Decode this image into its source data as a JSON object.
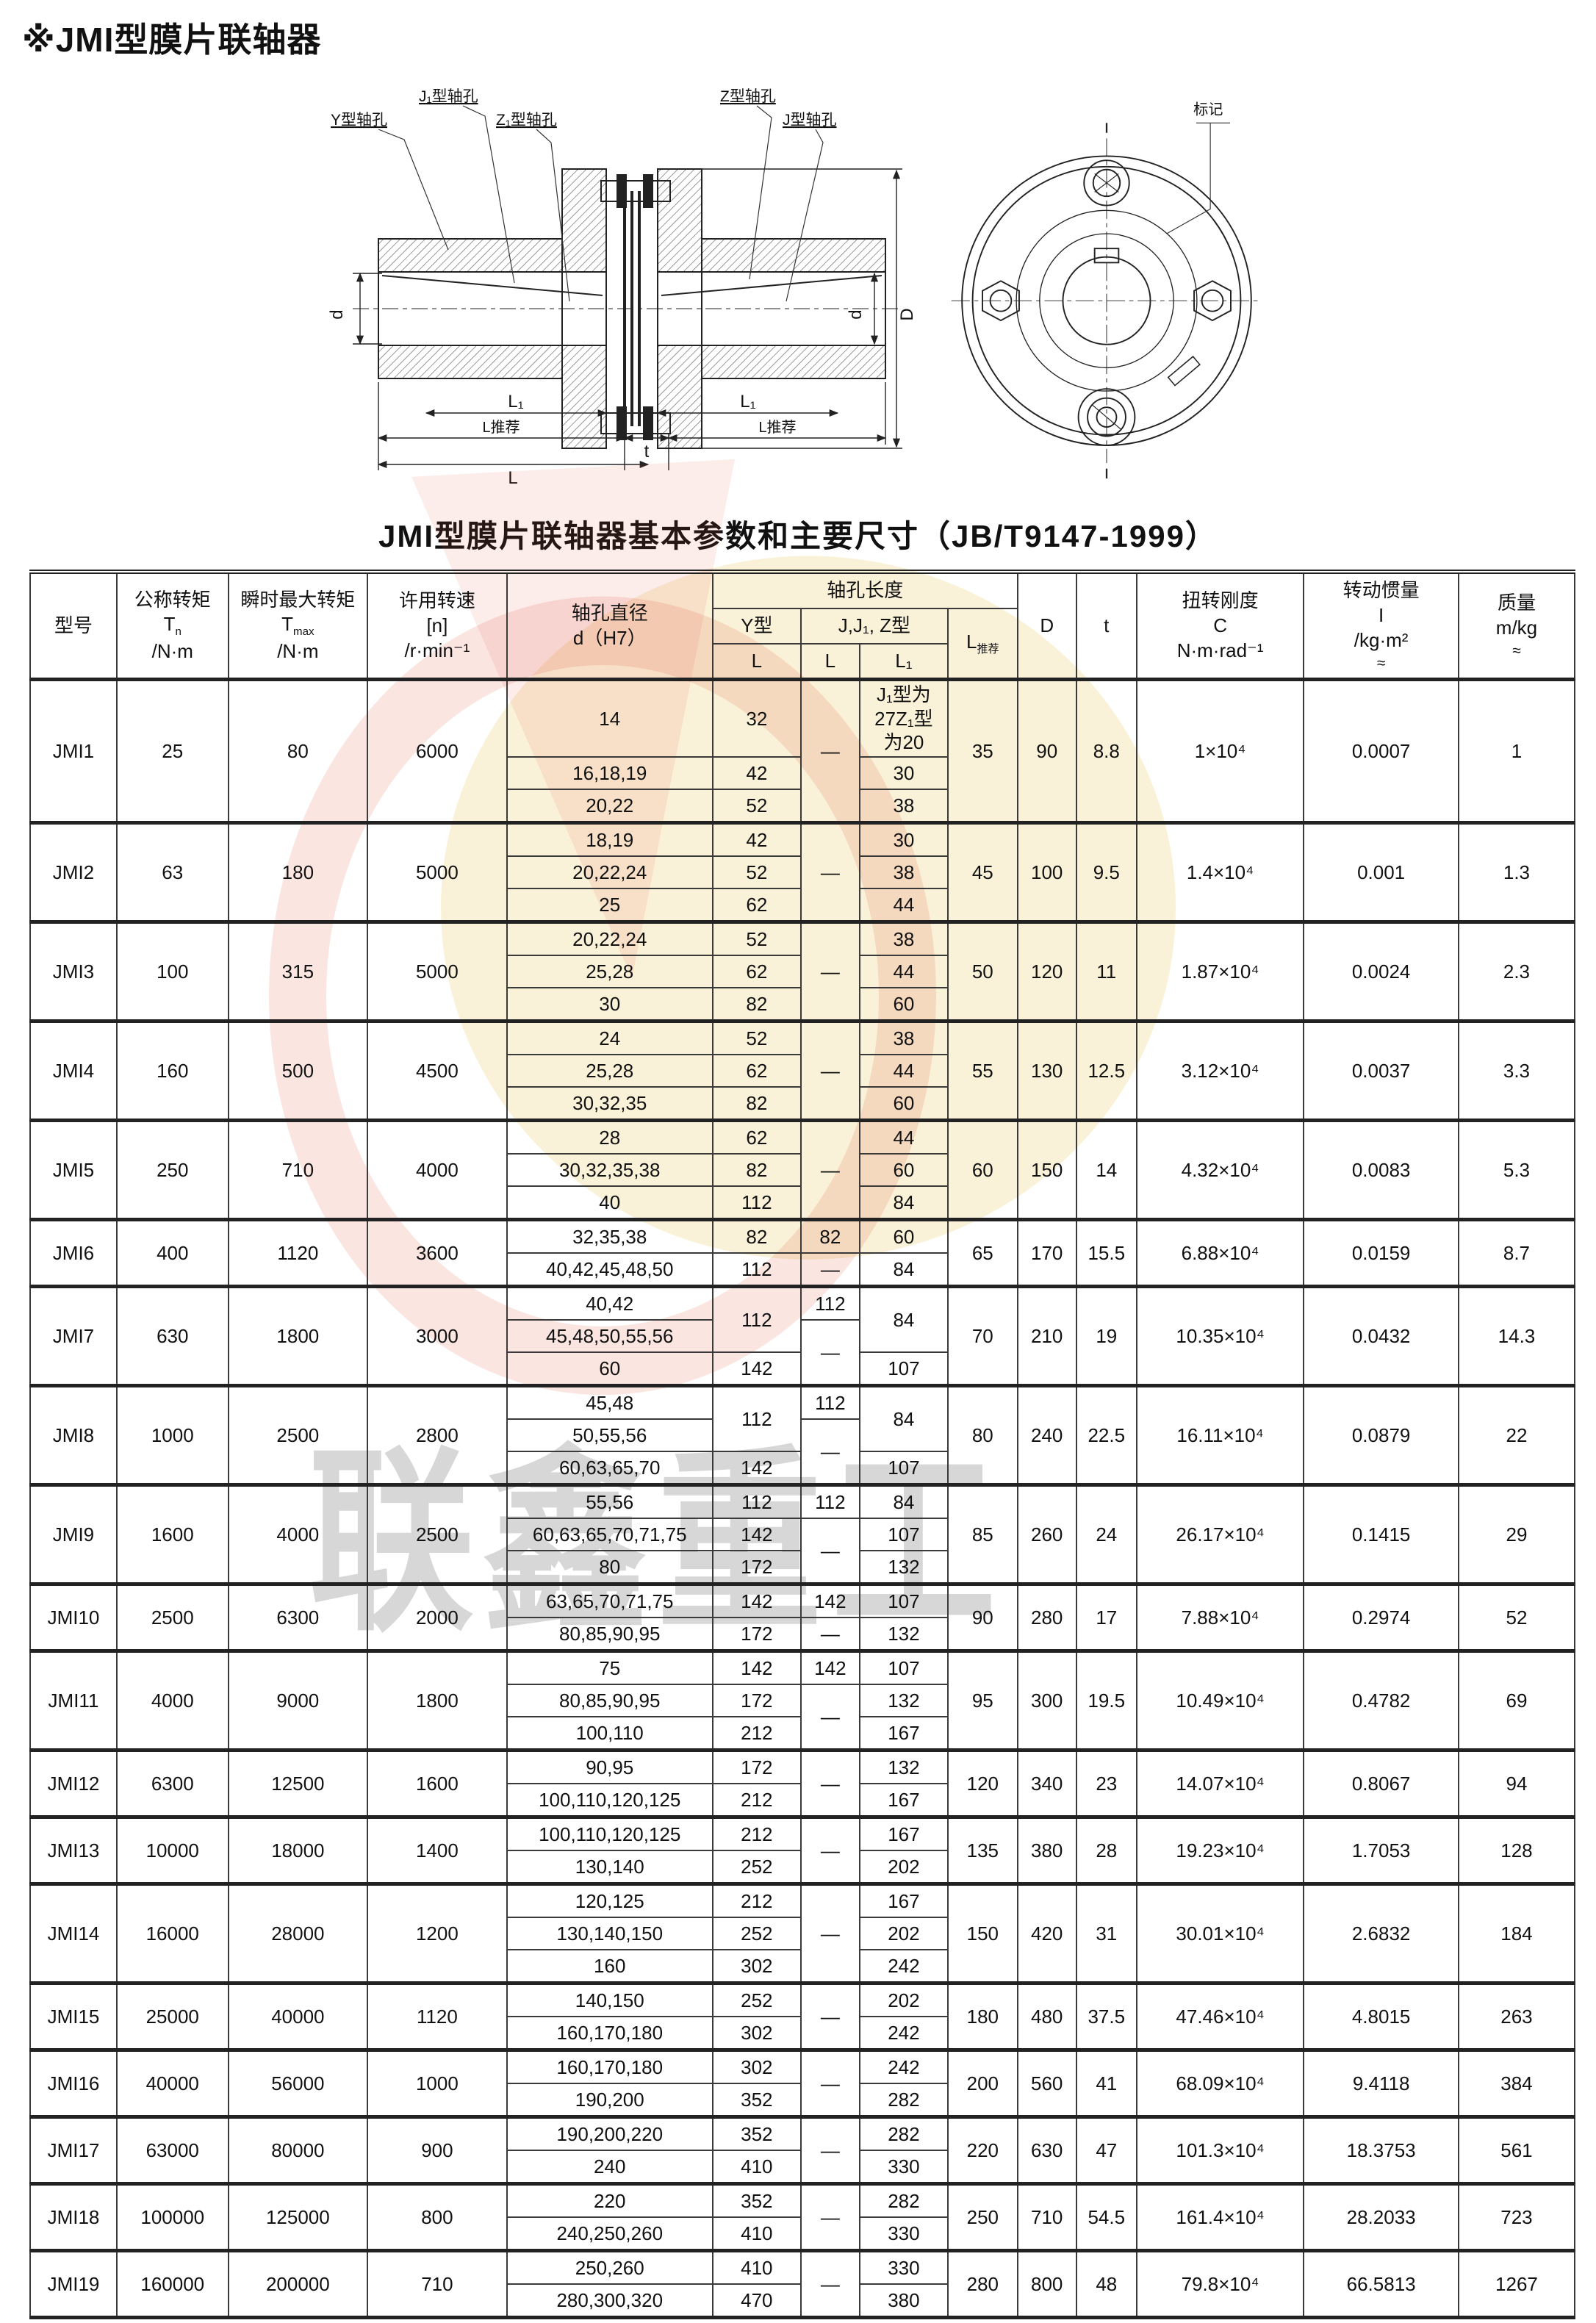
{
  "page": {
    "title": "※JMI型膜片联轴器",
    "table_title": "JMI型膜片联轴器基本参数和主要尺寸（JB/T9147-1999）",
    "watermark_text": "联鑫重工",
    "watermark_colors": {
      "cream": "#f8eecb",
      "red": "#df462d",
      "gray": "#b0b0b0"
    }
  },
  "diagram": {
    "section_labels": {
      "y": "Y型轴孔",
      "j1": "J₁型轴孔",
      "z1": "Z₁型轴孔",
      "z": "Z型轴孔",
      "j": "J型轴孔"
    },
    "front_label": "标记",
    "dims": {
      "d": "d",
      "D": "D",
      "L1": "L₁",
      "Lrec": "L推荐",
      "t": "t",
      "L": "L"
    }
  },
  "table": {
    "header": {
      "model": "型号",
      "hole_length": "轴孔长度",
      "tn": {
        "line1": "公称转矩",
        "base": "T",
        "sub": "n",
        "unit": "/N·m"
      },
      "tmax": {
        "line1": "瞬时最大转矩",
        "base": "T",
        "sub": "max",
        "unit": "/N·m"
      },
      "speed": {
        "line1": "许用转速",
        "line2": "[n]",
        "unit": "/r·min⁻¹"
      },
      "bore": {
        "line1": "轴孔直径",
        "line2": "d（H7）"
      },
      "y_type": "Y型",
      "jjz_type": "J,J₁, Z型",
      "col_L": "L",
      "col_L1": "L₁",
      "l_rec": {
        "base": "L",
        "sub": "推荐"
      },
      "col_D": "D",
      "col_t": "t",
      "stiffness": {
        "line1": "扭转刚度",
        "line2": "C",
        "line3": "N·m·rad⁻¹"
      },
      "inertia": {
        "line1": "转动惯量",
        "line2": "I",
        "line3": "/kg·m²",
        "line4": "≈"
      },
      "mass": {
        "line1": "质量",
        "line2": "m/kg",
        "line3": "≈"
      }
    },
    "groups": [
      {
        "model": "JMI1",
        "tn": "25",
        "tmax": "80",
        "n": "6000",
        "rows": [
          {
            "d": "14",
            "y": "32",
            "j": {
              "t": "—",
              "rs": 3
            },
            "l1": "J₁型为\n27Z₁型\n为20"
          },
          {
            "d": "16,18,19",
            "y": "42",
            "l1": "30"
          },
          {
            "d": "20,22",
            "y": "52",
            "l1": "38"
          }
        ],
        "lrec": "35",
        "D": "90",
        "t": "8.8",
        "c": "1×10⁴",
        "i": "0.0007",
        "m": "1"
      },
      {
        "model": "JMI2",
        "tn": "63",
        "tmax": "180",
        "n": "5000",
        "rows": [
          {
            "d": "18,19",
            "y": "42",
            "j": {
              "t": "—",
              "rs": 3
            },
            "l1": "30"
          },
          {
            "d": "20,22,24",
            "y": "52",
            "l1": "38"
          },
          {
            "d": "25",
            "y": "62",
            "l1": "44"
          }
        ],
        "lrec": "45",
        "D": "100",
        "t": "9.5",
        "c": "1.4×10⁴",
        "i": "0.001",
        "m": "1.3"
      },
      {
        "model": "JMI3",
        "tn": "100",
        "tmax": "315",
        "n": "5000",
        "rows": [
          {
            "d": "20,22,24",
            "y": "52",
            "j": {
              "t": "—",
              "rs": 3
            },
            "l1": "38"
          },
          {
            "d": "25,28",
            "y": "62",
            "l1": "44"
          },
          {
            "d": "30",
            "y": "82",
            "l1": "60"
          }
        ],
        "lrec": "50",
        "D": "120",
        "t": "11",
        "c": "1.87×10⁴",
        "i": "0.0024",
        "m": "2.3"
      },
      {
        "model": "JMI4",
        "tn": "160",
        "tmax": "500",
        "n": "4500",
        "rows": [
          {
            "d": "24",
            "y": "52",
            "j": {
              "t": "—",
              "rs": 3
            },
            "l1": "38"
          },
          {
            "d": "25,28",
            "y": "62",
            "l1": "44"
          },
          {
            "d": "30,32,35",
            "y": "82",
            "l1": "60"
          }
        ],
        "lrec": "55",
        "D": "130",
        "t": "12.5",
        "c": "3.12×10⁴",
        "i": "0.0037",
        "m": "3.3"
      },
      {
        "model": "JMI5",
        "tn": "250",
        "tmax": "710",
        "n": "4000",
        "rows": [
          {
            "d": "28",
            "y": "62",
            "j": {
              "t": "—",
              "rs": 3
            },
            "l1": "44"
          },
          {
            "d": "30,32,35,38",
            "y": "82",
            "l1": "60"
          },
          {
            "d": "40",
            "y": "112",
            "l1": "84"
          }
        ],
        "lrec": "60",
        "D": "150",
        "t": "14",
        "c": "4.32×10⁴",
        "i": "0.0083",
        "m": "5.3"
      },
      {
        "model": "JMI6",
        "tn": "400",
        "tmax": "1120",
        "n": "3600",
        "rows": [
          {
            "d": "32,35,38",
            "y": "82",
            "j": "82",
            "l1": "60"
          },
          {
            "d": "40,42,45,48,50",
            "y": "112",
            "j": "—",
            "l1": "84"
          }
        ],
        "lrec": "65",
        "D": "170",
        "t": "15.5",
        "c": "6.88×10⁴",
        "i": "0.0159",
        "m": "8.7"
      },
      {
        "model": "JMI7",
        "tn": "630",
        "tmax": "1800",
        "n": "3000",
        "rows": [
          {
            "d": "40,42",
            "y": {
              "t": "112",
              "rs": 2
            },
            "j": "112",
            "l1": {
              "t": "84",
              "rs": 2
            }
          },
          {
            "d": "45,48,50,55,56",
            "j": {
              "t": "—",
              "rs": 2
            }
          },
          {
            "d": "60",
            "y": "142",
            "l1": "107"
          }
        ],
        "lrec": "70",
        "D": "210",
        "t": "19",
        "c": "10.35×10⁴",
        "i": "0.0432",
        "m": "14.3"
      },
      {
        "model": "JMI8",
        "tn": "1000",
        "tmax": "2500",
        "n": "2800",
        "rows": [
          {
            "d": "45,48",
            "y": {
              "t": "112",
              "rs": 2
            },
            "j": "112",
            "l1": {
              "t": "84",
              "rs": 2
            }
          },
          {
            "d": "50,55,56",
            "j": {
              "t": "—",
              "rs": 2
            }
          },
          {
            "d": "60,63,65,70",
            "y": "142",
            "l1": "107"
          }
        ],
        "lrec": "80",
        "D": "240",
        "t": "22.5",
        "c": "16.11×10⁴",
        "i": "0.0879",
        "m": "22"
      },
      {
        "model": "JMI9",
        "tn": "1600",
        "tmax": "4000",
        "n": "2500",
        "rows": [
          {
            "d": "55,56",
            "y": "112",
            "j": "112",
            "l1": "84"
          },
          {
            "d": "60,63,65,70,71,75",
            "y": "142",
            "j": {
              "t": "—",
              "rs": 2
            },
            "l1": "107"
          },
          {
            "d": "80",
            "y": "172",
            "l1": "132"
          }
        ],
        "lrec": "85",
        "D": "260",
        "t": "24",
        "c": "26.17×10⁴",
        "i": "0.1415",
        "m": "29"
      },
      {
        "model": "JMI10",
        "tn": "2500",
        "tmax": "6300",
        "n": "2000",
        "rows": [
          {
            "d": "63,65,70,71,75",
            "y": "142",
            "j": "142",
            "l1": "107"
          },
          {
            "d": "80,85,90,95",
            "y": "172",
            "j": "—",
            "l1": "132"
          }
        ],
        "lrec": "90",
        "D": "280",
        "t": "17",
        "c": "7.88×10⁴",
        "i": "0.2974",
        "m": "52"
      },
      {
        "model": "JMI11",
        "tn": "4000",
        "tmax": "9000",
        "n": "1800",
        "rows": [
          {
            "d": "75",
            "y": "142",
            "j": "142",
            "l1": "107"
          },
          {
            "d": "80,85,90,95",
            "y": "172",
            "j": {
              "t": "—",
              "rs": 2
            },
            "l1": "132"
          },
          {
            "d": "100,110",
            "y": "212",
            "l1": "167"
          }
        ],
        "lrec": "95",
        "D": "300",
        "t": "19.5",
        "c": "10.49×10⁴",
        "i": "0.4782",
        "m": "69"
      },
      {
        "model": "JMI12",
        "tn": "6300",
        "tmax": "12500",
        "n": "1600",
        "rows": [
          {
            "d": "90,95",
            "y": "172",
            "j": {
              "t": "—",
              "rs": 2
            },
            "l1": "132"
          },
          {
            "d": "100,110,120,125",
            "y": "212",
            "l1": "167"
          }
        ],
        "lrec": "120",
        "D": "340",
        "t": "23",
        "c": "14.07×10⁴",
        "i": "0.8067",
        "m": "94"
      },
      {
        "model": "JMI13",
        "tn": "10000",
        "tmax": "18000",
        "n": "1400",
        "rows": [
          {
            "d": "100,110,120,125",
            "y": "212",
            "j": {
              "t": "—",
              "rs": 2
            },
            "l1": "167"
          },
          {
            "d": "130,140",
            "y": "252",
            "l1": "202"
          }
        ],
        "lrec": "135",
        "D": "380",
        "t": "28",
        "c": "19.23×10⁴",
        "i": "1.7053",
        "m": "128"
      },
      {
        "model": "JMI14",
        "tn": "16000",
        "tmax": "28000",
        "n": "1200",
        "rows": [
          {
            "d": "120,125",
            "y": "212",
            "j": {
              "t": "—",
              "rs": 3
            },
            "l1": "167"
          },
          {
            "d": "130,140,150",
            "y": "252",
            "l1": "202"
          },
          {
            "d": "160",
            "y": "302",
            "l1": "242"
          }
        ],
        "lrec": "150",
        "D": "420",
        "t": "31",
        "c": "30.01×10⁴",
        "i": "2.6832",
        "m": "184"
      },
      {
        "model": "JMI15",
        "tn": "25000",
        "tmax": "40000",
        "n": "1120",
        "rows": [
          {
            "d": "140,150",
            "y": "252",
            "j": {
              "t": "—",
              "rs": 2
            },
            "l1": "202"
          },
          {
            "d": "160,170,180",
            "y": "302",
            "l1": "242"
          }
        ],
        "lrec": "180",
        "D": "480",
        "t": "37.5",
        "c": "47.46×10⁴",
        "i": "4.8015",
        "m": "263"
      },
      {
        "model": "JMI16",
        "tn": "40000",
        "tmax": "56000",
        "n": "1000",
        "rows": [
          {
            "d": "160,170,180",
            "y": "302",
            "j": {
              "t": "—",
              "rs": 2
            },
            "l1": "242"
          },
          {
            "d": "190,200",
            "y": "352",
            "l1": "282"
          }
        ],
        "lrec": "200",
        "D": "560",
        "t": "41",
        "c": "68.09×10⁴",
        "i": "9.4118",
        "m": "384"
      },
      {
        "model": "JMI17",
        "tn": "63000",
        "tmax": "80000",
        "n": "900",
        "rows": [
          {
            "d": "190,200,220",
            "y": "352",
            "j": {
              "t": "—",
              "rs": 2
            },
            "l1": "282"
          },
          {
            "d": "240",
            "y": "410",
            "l1": "330"
          }
        ],
        "lrec": "220",
        "D": "630",
        "t": "47",
        "c": "101.3×10⁴",
        "i": "18.3753",
        "m": "561"
      },
      {
        "model": "JMI18",
        "tn": "100000",
        "tmax": "125000",
        "n": "800",
        "rows": [
          {
            "d": "220",
            "y": "352",
            "j": {
              "t": "—",
              "rs": 2
            },
            "l1": "282"
          },
          {
            "d": "240,250,260",
            "y": "410",
            "l1": "330"
          }
        ],
        "lrec": "250",
        "D": "710",
        "t": "54.5",
        "c": "161.4×10⁴",
        "i": "28.2033",
        "m": "723"
      },
      {
        "model": "JMI19",
        "tn": "160000",
        "tmax": "200000",
        "n": "710",
        "rows": [
          {
            "d": "250,260",
            "y": "410",
            "j": {
              "t": "—",
              "rs": 2
            },
            "l1": "330"
          },
          {
            "d": "280,300,320",
            "y": "470",
            "l1": "380"
          }
        ],
        "lrec": "280",
        "D": "800",
        "t": "48",
        "c": "79.8×10⁴",
        "i": "66.5813",
        "m": "1267"
      }
    ]
  }
}
